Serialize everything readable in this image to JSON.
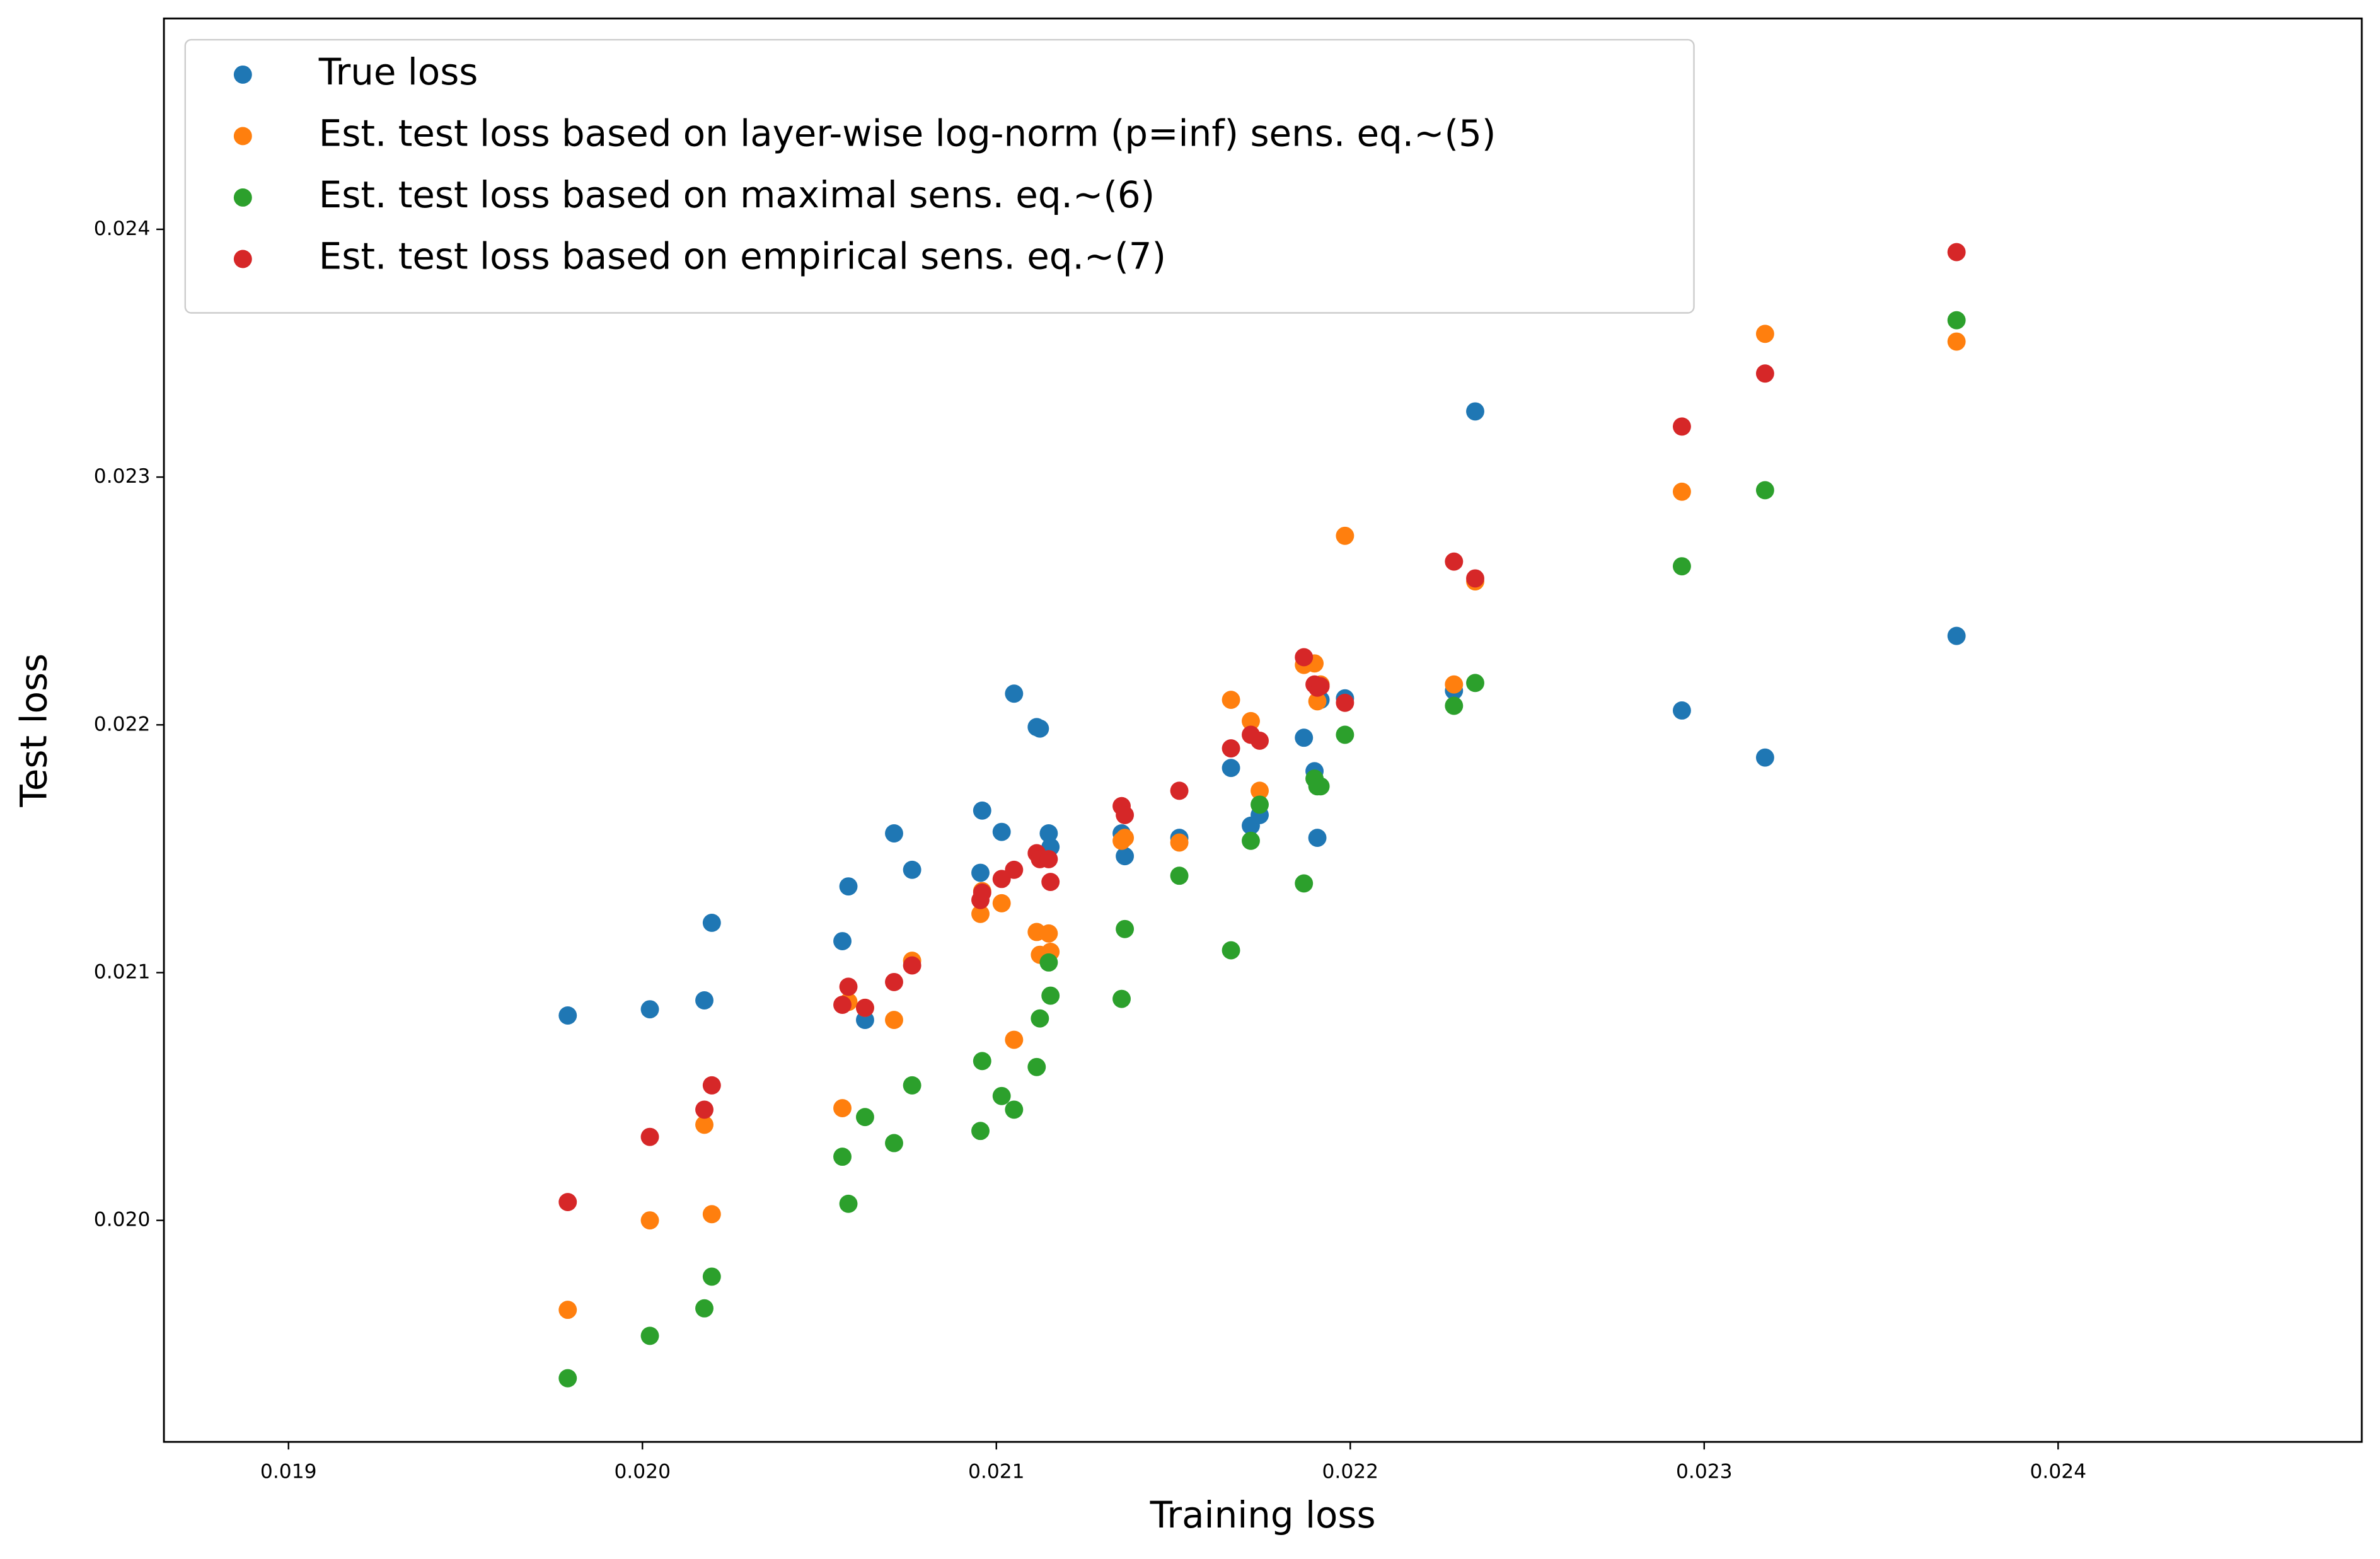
{
  "chart_data": {
    "type": "scatter",
    "x_label": "Training loss",
    "y_label": "Test loss",
    "xlim": [
      0.018648,
      0.024858
    ],
    "ylim": [
      0.019106,
      0.024851
    ],
    "xticks": [
      0.019,
      {
        "value": 0.02,
        "label": "0.020"
      },
      0.021,
      0.022,
      0.023,
      0.024
    ],
    "yticks": [
      {
        "value": 0.02,
        "label": "0.020"
      },
      0.021,
      0.022,
      0.023,
      0.024
    ],
    "grid": false,
    "legend_position": "upper left",
    "x": [
      0.019789,
      0.020021,
      0.020175,
      0.020196,
      0.020565,
      0.020582,
      0.020629,
      0.020711,
      0.020762,
      0.020955,
      0.02096,
      0.021015,
      0.02105,
      0.021114,
      0.021123,
      0.021148,
      0.021153,
      0.021354,
      0.021363,
      0.021517,
      0.021663,
      0.021719,
      0.021744,
      0.021869,
      0.021899,
      0.021907,
      0.021916,
      0.021985,
      0.022293,
      0.022353,
      0.022937,
      0.023172,
      0.023713
    ],
    "series": [
      {
        "name": "True loss",
        "color": "#1f77b4",
        "values": [
          0.020827,
          0.020852,
          0.020888,
          0.021201,
          0.021127,
          0.021348,
          0.020809,
          0.021562,
          0.021415,
          0.021403,
          0.021654,
          0.021568,
          0.022126,
          0.021991,
          0.021985,
          0.021562,
          0.021507,
          0.021562,
          0.02147,
          0.021544,
          0.021826,
          0.021593,
          0.021636,
          0.021948,
          0.021813,
          0.021544,
          0.022101,
          0.022107,
          0.022138,
          0.023265,
          0.022058,
          0.021868,
          0.022359
        ]
      },
      {
        "name": "Est. test loss based on layer-wise log-norm (p=inf) sens. eq.~(5)",
        "color": "#ff7f0e",
        "values": [
          0.019639,
          0.02,
          0.020386,
          0.020025,
          0.020453,
          0.020882,
          0.020858,
          0.020809,
          0.021048,
          0.021237,
          0.021329,
          0.02128,
          0.020729,
          0.021164,
          0.021072,
          0.021158,
          0.021084,
          0.021532,
          0.021544,
          0.021525,
          0.022101,
          0.022015,
          0.021734,
          0.022242,
          0.022248,
          0.022095,
          0.022163,
          0.022763,
          0.022163,
          0.022579,
          0.022941,
          0.023578,
          0.023547
        ]
      },
      {
        "name": "Est. test loss based on maximal sens. eq.~(6)",
        "color": "#2ca02c",
        "values": [
          0.019363,
          0.019534,
          0.019645,
          0.019773,
          0.020257,
          0.020067,
          0.020417,
          0.020312,
          0.020545,
          0.020361,
          0.020643,
          0.020502,
          0.020447,
          0.020619,
          0.020815,
          0.021041,
          0.020907,
          0.020894,
          0.021176,
          0.021391,
          0.02109,
          0.021532,
          0.021678,
          0.02136,
          0.021783,
          0.021752,
          0.021752,
          0.02196,
          0.022077,
          0.022169,
          0.02264,
          0.022947,
          0.023633
        ]
      },
      {
        "name": "Est. test loss based on empirical sens. eq.~(7)",
        "color": "#d62728",
        "values": [
          0.020074,
          0.020337,
          0.020447,
          0.020545,
          0.02087,
          0.020943,
          0.020858,
          0.020962,
          0.021029,
          0.021293,
          0.021323,
          0.021378,
          0.021415,
          0.021482,
          0.021458,
          0.021458,
          0.021366,
          0.021672,
          0.021636,
          0.021734,
          0.021905,
          0.02196,
          0.021936,
          0.022273,
          0.022163,
          0.02215,
          0.022156,
          0.022089,
          0.022659,
          0.022591,
          0.023204,
          0.023418,
          0.023908
        ]
      }
    ]
  }
}
